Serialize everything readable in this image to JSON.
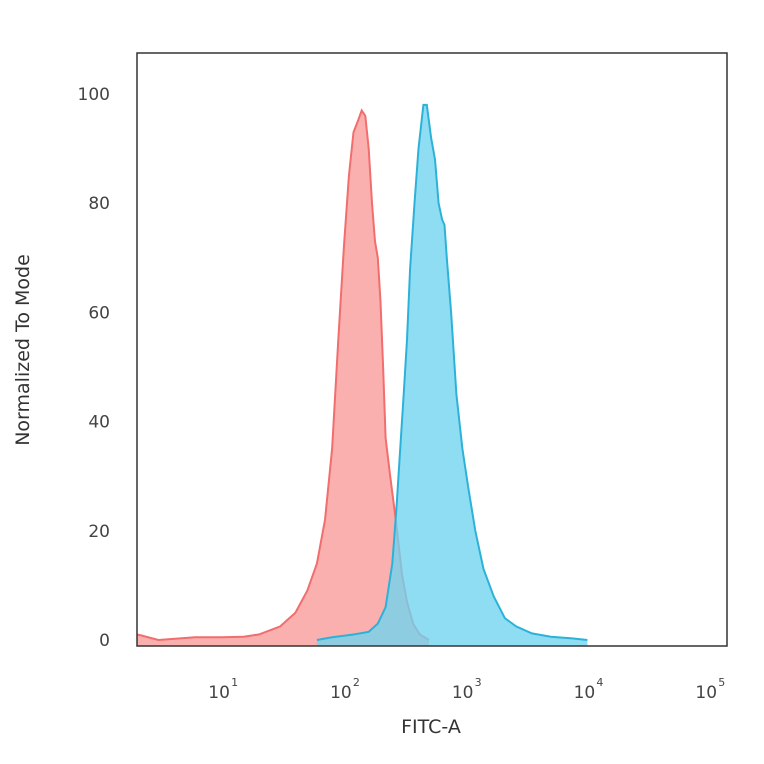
{
  "chart_data": {
    "type": "area",
    "title": "",
    "xlabel": "FITC-A",
    "ylabel": "Normalized To Mode",
    "x_scale": "log",
    "xlim": [
      2,
      140000
    ],
    "ylim": [
      0,
      105
    ],
    "grid": false,
    "x_ticks": [
      {
        "value": 10,
        "base": "10",
        "exp": "1"
      },
      {
        "value": 100,
        "base": "10",
        "exp": "2"
      },
      {
        "value": 1000,
        "base": "10",
        "exp": "3"
      },
      {
        "value": 10000,
        "base": "10",
        "exp": "4"
      },
      {
        "value": 100000,
        "base": "10",
        "exp": "5"
      }
    ],
    "y_ticks": [
      0,
      20,
      40,
      60,
      80,
      100
    ],
    "series": [
      {
        "color": "#f26d6d",
        "fill": "#fa9a9a",
        "points": [
          [
            2,
            1
          ],
          [
            2.2,
            0.8
          ],
          [
            3,
            0
          ],
          [
            6,
            0.5
          ],
          [
            10,
            0.5
          ],
          [
            15,
            0.6
          ],
          [
            20,
            1
          ],
          [
            30,
            2.5
          ],
          [
            40,
            5
          ],
          [
            50,
            9
          ],
          [
            60,
            14
          ],
          [
            70,
            22
          ],
          [
            80,
            35
          ],
          [
            90,
            55
          ],
          [
            100,
            72
          ],
          [
            110,
            85
          ],
          [
            120,
            93
          ],
          [
            130,
            95
          ],
          [
            140,
            97
          ],
          [
            150,
            96
          ],
          [
            160,
            90
          ],
          [
            170,
            80
          ],
          [
            180,
            73
          ],
          [
            190,
            70
          ],
          [
            200,
            62
          ],
          [
            210,
            50
          ],
          [
            220,
            37
          ],
          [
            240,
            30
          ],
          [
            260,
            24
          ],
          [
            280,
            18
          ],
          [
            300,
            12
          ],
          [
            330,
            7
          ],
          [
            370,
            3
          ],
          [
            420,
            1
          ],
          [
            500,
            0
          ]
        ]
      },
      {
        "color": "#2cb2d8",
        "fill": "#6fd3f0",
        "points": [
          [
            60,
            0
          ],
          [
            80,
            0.5
          ],
          [
            120,
            1
          ],
          [
            160,
            1.5
          ],
          [
            190,
            3
          ],
          [
            220,
            6
          ],
          [
            250,
            14
          ],
          [
            270,
            24
          ],
          [
            290,
            35
          ],
          [
            310,
            45
          ],
          [
            330,
            55
          ],
          [
            350,
            68
          ],
          [
            380,
            80
          ],
          [
            410,
            90
          ],
          [
            450,
            98
          ],
          [
            480,
            98
          ],
          [
            520,
            92
          ],
          [
            560,
            88
          ],
          [
            600,
            80
          ],
          [
            640,
            77
          ],
          [
            670,
            76
          ],
          [
            700,
            70
          ],
          [
            760,
            60
          ],
          [
            840,
            45
          ],
          [
            940,
            35
          ],
          [
            1050,
            28
          ],
          [
            1200,
            20
          ],
          [
            1400,
            13
          ],
          [
            1700,
            8
          ],
          [
            2100,
            4
          ],
          [
            2600,
            2.5
          ],
          [
            3500,
            1.2
          ],
          [
            5000,
            0.6
          ],
          [
            7500,
            0.3
          ],
          [
            10000,
            0
          ]
        ]
      }
    ]
  }
}
